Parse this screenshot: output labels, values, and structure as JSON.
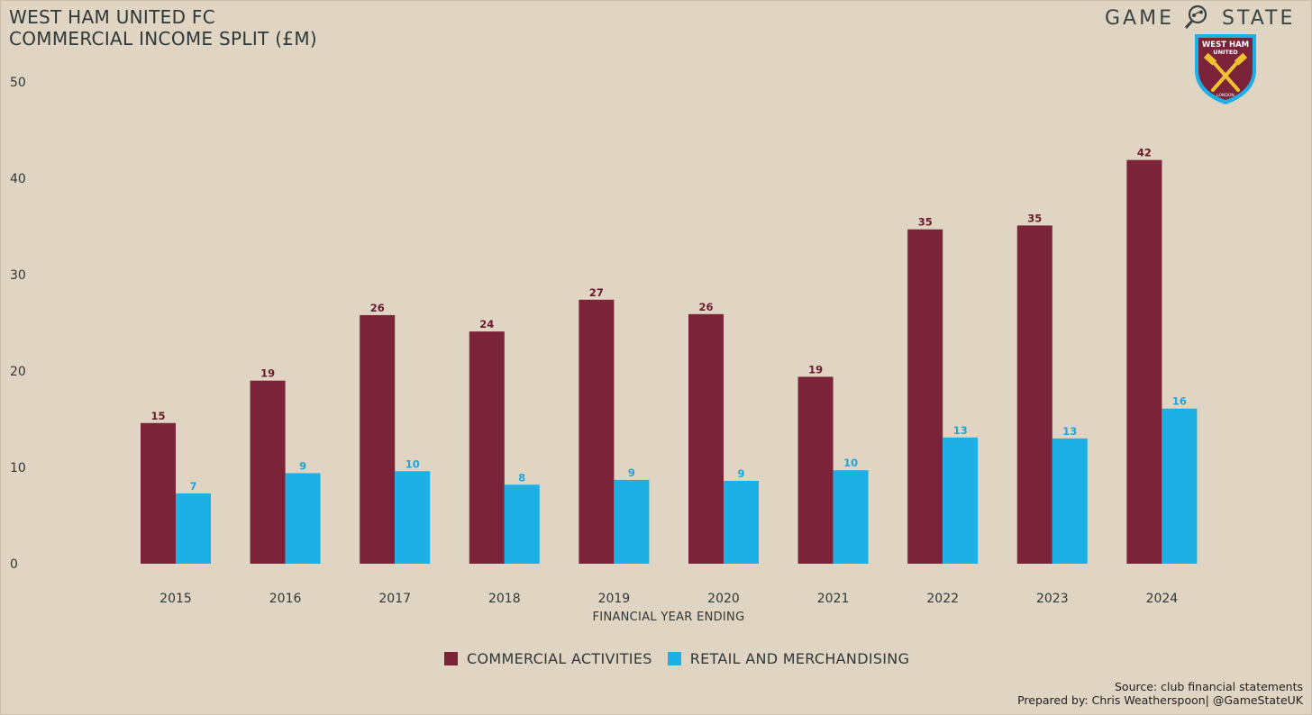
{
  "header": {
    "title_line1": "WEST HAM UNITED FC",
    "title_line2": "COMMERCIAL INCOME SPLIT (£M)"
  },
  "brand": {
    "word_left": "GAME",
    "word_right": "STATE",
    "icon": "magnifier-icon"
  },
  "crest": {
    "icon": "west-ham-crest",
    "text_top": "WEST HAM",
    "text_mid": "UNITED",
    "text_bottom": "LONDON",
    "colors": {
      "shield": "#7a2339",
      "border": "#1cb0e6",
      "hammers": "#f2c22e"
    }
  },
  "chart_data": {
    "type": "bar",
    "categories": [
      "2015",
      "2016",
      "2017",
      "2018",
      "2019",
      "2020",
      "2021",
      "2022",
      "2023",
      "2024"
    ],
    "series": [
      {
        "name": "COMMERCIAL ACTIVITIES",
        "color": "#7a2339",
        "values": [
          14.6,
          19.0,
          25.8,
          24.1,
          27.4,
          25.9,
          19.4,
          34.7,
          35.1,
          41.9
        ],
        "labels": [
          "15",
          "19",
          "26",
          "24",
          "27",
          "26",
          "19",
          "35",
          "35",
          "42"
        ]
      },
      {
        "name": "RETAIL AND MERCHANDISING",
        "color": "#1cb0e6",
        "values": [
          7.3,
          9.4,
          9.6,
          8.2,
          8.7,
          8.6,
          9.7,
          13.1,
          13.0,
          16.1
        ],
        "labels": [
          "7",
          "9",
          "10",
          "8",
          "9",
          "9",
          "10",
          "13",
          "13",
          "16"
        ]
      }
    ],
    "yticks": [
      "0",
      "10",
      "20",
      "30",
      "40",
      "50"
    ],
    "ylim": [
      0,
      50
    ],
    "xlabel": "FINANCIAL YEAR ENDING",
    "ylabel": "",
    "grid": false,
    "legend": "bottom-center"
  },
  "footer": {
    "source": "Source: club financial statements",
    "prepared_by": "Prepared by: Chris Weatherspoon| @GameStateUK"
  }
}
